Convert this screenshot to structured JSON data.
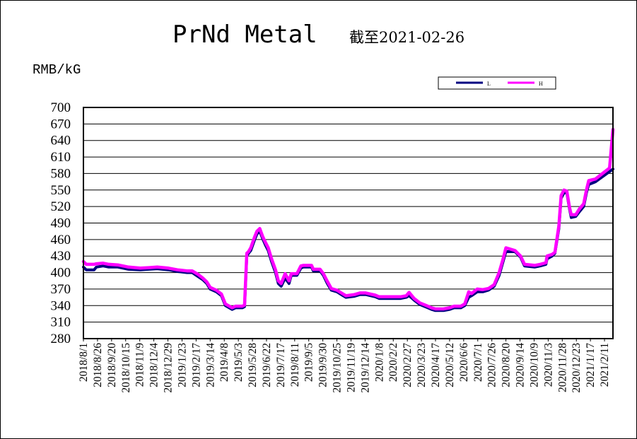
{
  "chart_data": {
    "type": "line",
    "title": "PrNd Metal",
    "subtitle": "截至2021-02-26",
    "unit_label": "RMB/kG",
    "ylim": [
      280,
      700
    ],
    "yticks": [
      700,
      670,
      640,
      610,
      580,
      550,
      520,
      490,
      460,
      430,
      400,
      370,
      340,
      310,
      280
    ],
    "grid": true,
    "legend_position": "top-right",
    "colors": {
      "L": "#000080",
      "H": "#ff00ff"
    },
    "xtick_labels": [
      "2018/8/1",
      "2018/8/26",
      "2018/9/20",
      "2018/10/15",
      "2018/11/9",
      "2018/12/4",
      "2018/12/29",
      "2019/1/23",
      "2019/2/17",
      "2019/3/14",
      "2019/4/8",
      "2019/5/3",
      "2019/5/28",
      "2019/6/22",
      "2019/7/17",
      "2019/8/11",
      "2019/9/5",
      "2019/9/30",
      "2019/10/25",
      "2019/11/19",
      "2019/12/14",
      "2020/1/8",
      "2020/2/2",
      "2020/2/27",
      "2020/3/23",
      "2020/4/17",
      "2020/5/12",
      "2020/6/6",
      "2020/7/1",
      "2020/7/26",
      "2020/8/20",
      "2020/9/14",
      "2020/10/9",
      "2020/11/3",
      "2020/11/28",
      "2020/12/23",
      "2021/1/17",
      "2021/2/11"
    ],
    "series": [
      {
        "name": "L",
        "points": [
          [
            "2018-08-01",
            410
          ],
          [
            "2018-08-06",
            405
          ],
          [
            "2018-08-20",
            405
          ],
          [
            "2018-08-24",
            410
          ],
          [
            "2018-09-05",
            412
          ],
          [
            "2018-09-15",
            410
          ],
          [
            "2018-10-01",
            410
          ],
          [
            "2018-10-20",
            406
          ],
          [
            "2018-11-10",
            405
          ],
          [
            "2018-11-25",
            406
          ],
          [
            "2018-12-10",
            407
          ],
          [
            "2018-12-30",
            405
          ],
          [
            "2019-01-15",
            402
          ],
          [
            "2019-02-01",
            400
          ],
          [
            "2019-02-10",
            400
          ],
          [
            "2019-02-20",
            393
          ],
          [
            "2019-03-01",
            387
          ],
          [
            "2019-03-08",
            380
          ],
          [
            "2019-03-14",
            370
          ],
          [
            "2019-03-25",
            365
          ],
          [
            "2019-04-03",
            358
          ],
          [
            "2019-04-10",
            340
          ],
          [
            "2019-04-22",
            333
          ],
          [
            "2019-04-28",
            336
          ],
          [
            "2019-05-10",
            336
          ],
          [
            "2019-05-14",
            338
          ],
          [
            "2019-05-18",
            430
          ],
          [
            "2019-05-21",
            435
          ],
          [
            "2019-05-25",
            440
          ],
          [
            "2019-06-01",
            460
          ],
          [
            "2019-06-05",
            470
          ],
          [
            "2019-06-10",
            475
          ],
          [
            "2019-06-15",
            462
          ],
          [
            "2019-06-20",
            450
          ],
          [
            "2019-06-25",
            440
          ],
          [
            "2019-07-01",
            420
          ],
          [
            "2019-07-08",
            400
          ],
          [
            "2019-07-13",
            380
          ],
          [
            "2019-07-18",
            375
          ],
          [
            "2019-07-25",
            390
          ],
          [
            "2019-08-01",
            380
          ],
          [
            "2019-08-05",
            395
          ],
          [
            "2019-08-15",
            395
          ],
          [
            "2019-08-22",
            408
          ],
          [
            "2019-08-26",
            410
          ],
          [
            "2019-09-10",
            410
          ],
          [
            "2019-09-13",
            403
          ],
          [
            "2019-09-25",
            403
          ],
          [
            "2019-10-01",
            395
          ],
          [
            "2019-10-08",
            380
          ],
          [
            "2019-10-15",
            368
          ],
          [
            "2019-10-25",
            365
          ],
          [
            "2019-11-05",
            358
          ],
          [
            "2019-11-10",
            355
          ],
          [
            "2019-11-25",
            357
          ],
          [
            "2019-12-05",
            360
          ],
          [
            "2019-12-15",
            360
          ],
          [
            "2020-01-01",
            356
          ],
          [
            "2020-01-08",
            353
          ],
          [
            "2020-02-15",
            353
          ],
          [
            "2020-02-25",
            355
          ],
          [
            "2020-03-01",
            358
          ],
          [
            "2020-03-10",
            350
          ],
          [
            "2020-03-20",
            342
          ],
          [
            "2020-04-01",
            337
          ],
          [
            "2020-04-10",
            333
          ],
          [
            "2020-04-17",
            331
          ],
          [
            "2020-05-01",
            331
          ],
          [
            "2020-05-12",
            333
          ],
          [
            "2020-05-20",
            336
          ],
          [
            "2020-06-01",
            336
          ],
          [
            "2020-06-08",
            340
          ],
          [
            "2020-06-15",
            355
          ],
          [
            "2020-06-20",
            358
          ],
          [
            "2020-06-30",
            365
          ],
          [
            "2020-07-10",
            365
          ],
          [
            "2020-07-20",
            368
          ],
          [
            "2020-07-30",
            375
          ],
          [
            "2020-08-08",
            395
          ],
          [
            "2020-08-15",
            420
          ],
          [
            "2020-08-20",
            438
          ],
          [
            "2020-09-05",
            438
          ],
          [
            "2020-09-15",
            428
          ],
          [
            "2020-09-22",
            412
          ],
          [
            "2020-10-10",
            410
          ],
          [
            "2020-10-20",
            412
          ],
          [
            "2020-10-30",
            415
          ],
          [
            "2020-11-01",
            425
          ],
          [
            "2020-11-10",
            430
          ],
          [
            "2020-11-15",
            435
          ],
          [
            "2020-11-22",
            480
          ],
          [
            "2020-11-26",
            535
          ],
          [
            "2020-12-01",
            545
          ],
          [
            "2020-12-06",
            545
          ],
          [
            "2020-12-11",
            515
          ],
          [
            "2020-12-14",
            500
          ],
          [
            "2020-12-22",
            502
          ],
          [
            "2020-12-28",
            510
          ],
          [
            "2021-01-05",
            520
          ],
          [
            "2021-01-10",
            545
          ],
          [
            "2021-01-14",
            560
          ],
          [
            "2021-01-26",
            565
          ],
          [
            "2021-02-26",
            588
          ]
        ]
      },
      {
        "name": "H",
        "points": [
          [
            "2018-08-01",
            420
          ],
          [
            "2018-08-06",
            415
          ],
          [
            "2018-08-20",
            415
          ],
          [
            "2018-08-24",
            416
          ],
          [
            "2018-09-05",
            417
          ],
          [
            "2018-09-15",
            415
          ],
          [
            "2018-10-01",
            414
          ],
          [
            "2018-10-20",
            410
          ],
          [
            "2018-11-10",
            408
          ],
          [
            "2018-11-25",
            409
          ],
          [
            "2018-12-10",
            410
          ],
          [
            "2018-12-30",
            408
          ],
          [
            "2019-01-15",
            405
          ],
          [
            "2019-02-01",
            403
          ],
          [
            "2019-02-10",
            403
          ],
          [
            "2019-02-20",
            397
          ],
          [
            "2019-03-01",
            390
          ],
          [
            "2019-03-08",
            383
          ],
          [
            "2019-03-14",
            373
          ],
          [
            "2019-03-25",
            368
          ],
          [
            "2019-04-03",
            361
          ],
          [
            "2019-04-10",
            343
          ],
          [
            "2019-04-22",
            336
          ],
          [
            "2019-04-28",
            339
          ],
          [
            "2019-05-10",
            339
          ],
          [
            "2019-05-14",
            341
          ],
          [
            "2019-05-18",
            435
          ],
          [
            "2019-05-21",
            438
          ],
          [
            "2019-05-25",
            445
          ],
          [
            "2019-06-01",
            465
          ],
          [
            "2019-06-05",
            475
          ],
          [
            "2019-06-10",
            480
          ],
          [
            "2019-06-15",
            466
          ],
          [
            "2019-06-20",
            455
          ],
          [
            "2019-06-25",
            445
          ],
          [
            "2019-07-01",
            425
          ],
          [
            "2019-07-08",
            405
          ],
          [
            "2019-07-13",
            385
          ],
          [
            "2019-07-18",
            380
          ],
          [
            "2019-07-25",
            398
          ],
          [
            "2019-08-01",
            385
          ],
          [
            "2019-08-05",
            398
          ],
          [
            "2019-08-15",
            398
          ],
          [
            "2019-08-22",
            412
          ],
          [
            "2019-08-26",
            413
          ],
          [
            "2019-09-10",
            413
          ],
          [
            "2019-09-13",
            406
          ],
          [
            "2019-09-25",
            406
          ],
          [
            "2019-10-01",
            398
          ],
          [
            "2019-10-08",
            384
          ],
          [
            "2019-10-15",
            371
          ],
          [
            "2019-10-25",
            368
          ],
          [
            "2019-11-05",
            361
          ],
          [
            "2019-11-10",
            358
          ],
          [
            "2019-11-25",
            360
          ],
          [
            "2019-12-05",
            363
          ],
          [
            "2019-12-15",
            363
          ],
          [
            "2020-01-01",
            359
          ],
          [
            "2020-01-08",
            356
          ],
          [
            "2020-02-15",
            356
          ],
          [
            "2020-02-25",
            358
          ],
          [
            "2020-03-01",
            364
          ],
          [
            "2020-03-10",
            353
          ],
          [
            "2020-03-20",
            345
          ],
          [
            "2020-04-01",
            340
          ],
          [
            "2020-04-10",
            336
          ],
          [
            "2020-04-17",
            334
          ],
          [
            "2020-05-01",
            334
          ],
          [
            "2020-05-12",
            336
          ],
          [
            "2020-05-20",
            339
          ],
          [
            "2020-06-01",
            339
          ],
          [
            "2020-06-08",
            343
          ],
          [
            "2020-06-15",
            365
          ],
          [
            "2020-06-20",
            362
          ],
          [
            "2020-06-30",
            370
          ],
          [
            "2020-07-10",
            369
          ],
          [
            "2020-07-20",
            371
          ],
          [
            "2020-07-30",
            378
          ],
          [
            "2020-08-08",
            400
          ],
          [
            "2020-08-15",
            425
          ],
          [
            "2020-08-20",
            445
          ],
          [
            "2020-09-05",
            440
          ],
          [
            "2020-09-15",
            430
          ],
          [
            "2020-09-22",
            415
          ],
          [
            "2020-10-10",
            413
          ],
          [
            "2020-10-20",
            415
          ],
          [
            "2020-10-30",
            418
          ],
          [
            "2020-11-01",
            430
          ],
          [
            "2020-11-10",
            433
          ],
          [
            "2020-11-15",
            437
          ],
          [
            "2020-11-22",
            485
          ],
          [
            "2020-11-26",
            540
          ],
          [
            "2020-12-01",
            550
          ],
          [
            "2020-12-06",
            548
          ],
          [
            "2020-12-11",
            518
          ],
          [
            "2020-12-14",
            505
          ],
          [
            "2020-12-22",
            505
          ],
          [
            "2020-12-28",
            515
          ],
          [
            "2021-01-05",
            525
          ],
          [
            "2021-01-10",
            550
          ],
          [
            "2021-01-14",
            567
          ],
          [
            "2021-01-26",
            570
          ],
          [
            "2021-02-20",
            590
          ],
          [
            "2021-02-26",
            660
          ]
        ]
      }
    ]
  }
}
